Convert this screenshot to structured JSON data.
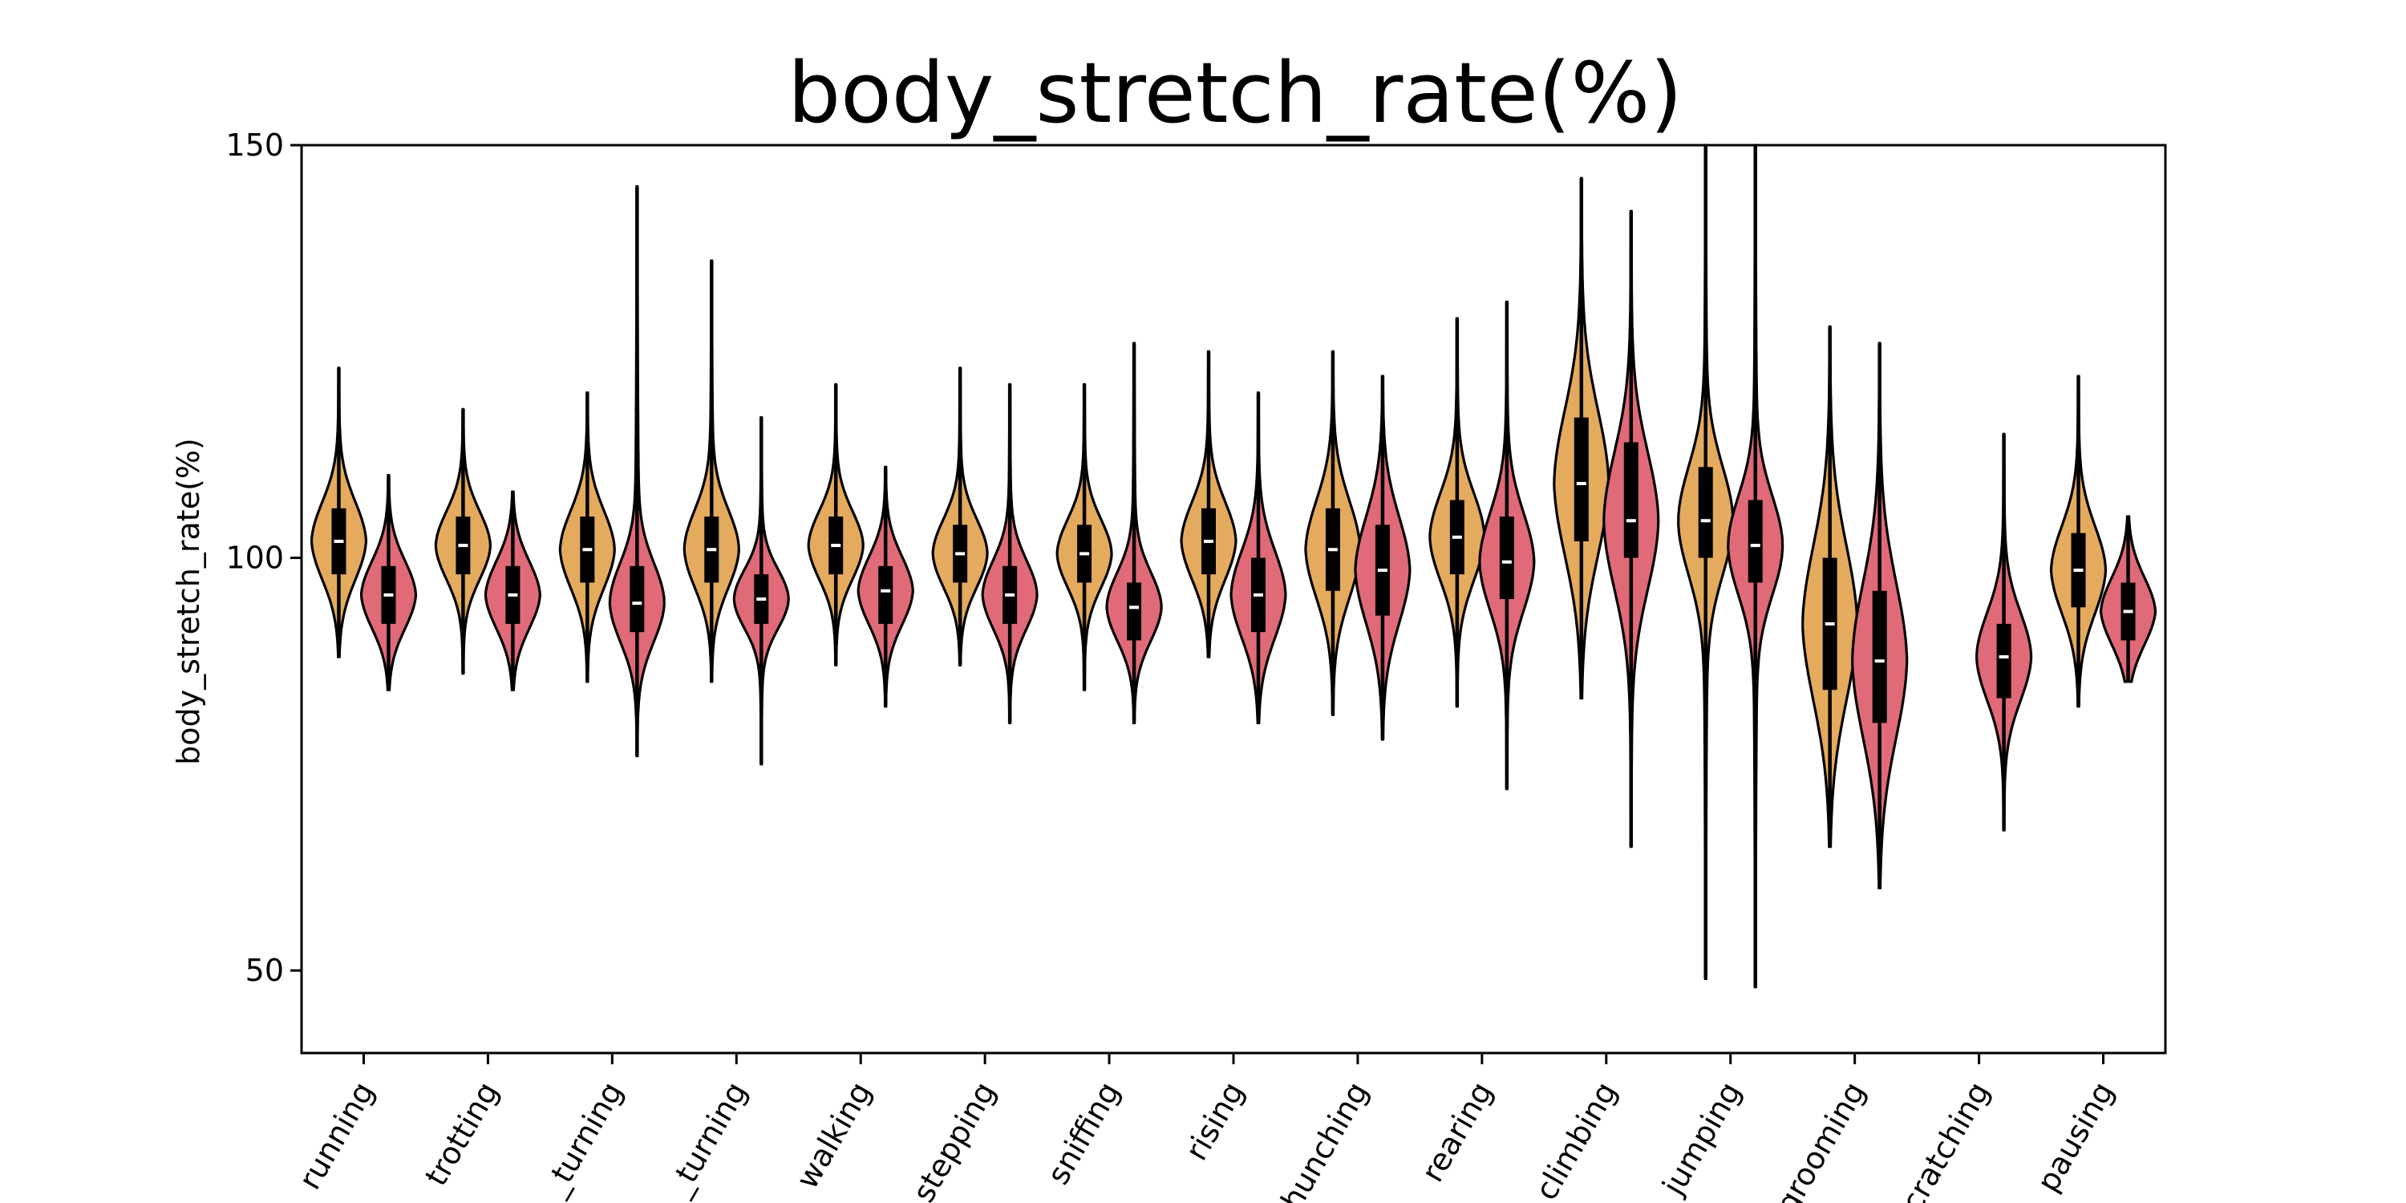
{
  "chart_data": {
    "type": "violin",
    "title": "body_stretch_rate(%)",
    "ylabel": "body_stretch_rate(%)",
    "xlabel": "",
    "ylim": [
      40,
      150
    ],
    "yticks": [
      50,
      100,
      150
    ],
    "grid": false,
    "categories": [
      "running",
      "trotting",
      "_turning",
      "_turning",
      "walking",
      "stepping",
      "sniffing",
      "rising",
      "hunching",
      "rearing",
      "climbing",
      "jumping",
      "grooming",
      "scratching",
      "pausing"
    ],
    "series": [
      {
        "color": "#E4AA5E",
        "violins": [
          {
            "median": 102,
            "q1": 98,
            "q3": 106,
            "min": 88,
            "max": 123
          },
          {
            "median": 101.5,
            "q1": 98,
            "q3": 105,
            "min": 86,
            "max": 118
          },
          {
            "median": 101,
            "q1": 97,
            "q3": 105,
            "min": 85,
            "max": 120
          },
          {
            "median": 101,
            "q1": 97,
            "q3": 105,
            "min": 85,
            "max": 136
          },
          {
            "median": 101.5,
            "q1": 98,
            "q3": 105,
            "min": 87,
            "max": 121
          },
          {
            "median": 100.5,
            "q1": 97,
            "q3": 104,
            "min": 87,
            "max": 123
          },
          {
            "median": 100.5,
            "q1": 97,
            "q3": 104,
            "min": 84,
            "max": 121
          },
          {
            "median": 102,
            "q1": 98,
            "q3": 106,
            "min": 88,
            "max": 125
          },
          {
            "median": 101,
            "q1": 96,
            "q3": 106,
            "min": 81,
            "max": 125
          },
          {
            "median": 102.5,
            "q1": 98,
            "q3": 107,
            "min": 82,
            "max": 129
          },
          {
            "median": 109,
            "q1": 102,
            "q3": 117,
            "min": 83,
            "max": 146
          },
          {
            "median": 104.5,
            "q1": 100,
            "q3": 111,
            "min": 49,
            "max": 150
          },
          {
            "median": 92,
            "q1": 84,
            "q3": 100,
            "min": 65,
            "max": 128
          },
          null,
          {
            "median": 98.5,
            "q1": 94,
            "q3": 103,
            "min": 82,
            "max": 122
          }
        ]
      },
      {
        "color": "#E06A77",
        "violins": [
          {
            "median": 95.5,
            "q1": 92,
            "q3": 99,
            "min": 84,
            "max": 110
          },
          {
            "median": 95.5,
            "q1": 92,
            "q3": 99,
            "min": 84,
            "max": 108
          },
          {
            "median": 94.5,
            "q1": 91,
            "q3": 99,
            "min": 76,
            "max": 145
          },
          {
            "median": 95,
            "q1": 92,
            "q3": 98,
            "min": 75,
            "max": 117
          },
          {
            "median": 96,
            "q1": 92,
            "q3": 99,
            "min": 82,
            "max": 111
          },
          {
            "median": 95.5,
            "q1": 92,
            "q3": 99,
            "min": 80,
            "max": 121
          },
          {
            "median": 94,
            "q1": 90,
            "q3": 97,
            "min": 80,
            "max": 126
          },
          {
            "median": 95.5,
            "q1": 91,
            "q3": 100,
            "min": 80,
            "max": 120
          },
          {
            "median": 98.5,
            "q1": 93,
            "q3": 104,
            "min": 78,
            "max": 122
          },
          {
            "median": 99.5,
            "q1": 95,
            "q3": 105,
            "min": 72,
            "max": 131
          },
          {
            "median": 104.5,
            "q1": 100,
            "q3": 114,
            "min": 65,
            "max": 142
          },
          {
            "median": 101.5,
            "q1": 97,
            "q3": 107,
            "min": 48,
            "max": 150
          },
          {
            "median": 87.5,
            "q1": 80,
            "q3": 96,
            "min": 60,
            "max": 126
          },
          {
            "median": 88,
            "q1": 83,
            "q3": 92,
            "min": 67,
            "max": 115
          },
          {
            "median": 93.5,
            "q1": 90,
            "q3": 97,
            "min": 85,
            "max": 105
          }
        ]
      }
    ]
  }
}
